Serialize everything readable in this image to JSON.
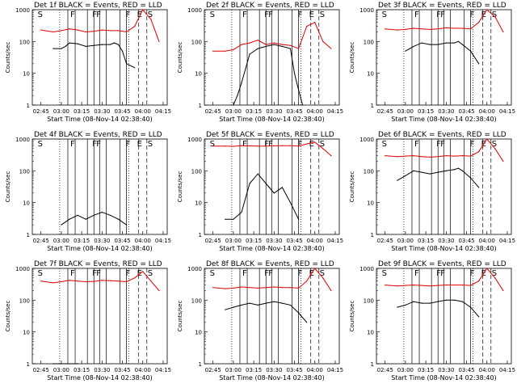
{
  "figure": {
    "xlabel": "Start Time (08-Nov-14 02:38:40)",
    "ylabel": "Counts/sec",
    "x_ticks": [
      "02:45",
      "03:00",
      "03:15",
      "03:30",
      "03:45",
      "04:00",
      "04:15"
    ],
    "y_ticks": [
      "1",
      "10",
      "100",
      "1000"
    ],
    "colors": {
      "events": "#000000",
      "lld": "#e00000"
    }
  },
  "chart_data": [
    {
      "type": "line",
      "title": "Det 1f BLACK = Events, RED = LLD",
      "x_range": [
        "02:38:40",
        "04:18:00"
      ],
      "y_scale": "log",
      "ylim": [
        1,
        1000
      ],
      "series": [
        {
          "name": "Events",
          "values": [
            [
              2.9,
              60
            ],
            [
              3.0,
              60
            ],
            [
              3.05,
              70
            ],
            [
              3.1,
              90
            ],
            [
              3.2,
              85
            ],
            [
              3.3,
              70
            ],
            [
              3.4,
              75
            ],
            [
              3.5,
              80
            ],
            [
              3.6,
              80
            ],
            [
              3.65,
              90
            ],
            [
              3.7,
              80
            ],
            [
              3.75,
              50
            ],
            [
              3.8,
              20
            ],
            [
              3.9,
              15
            ]
          ]
        },
        {
          "name": "LLD",
          "values": [
            [
              2.75,
              230
            ],
            [
              2.9,
              200
            ],
            [
              3.0,
              220
            ],
            [
              3.1,
              250
            ],
            [
              3.2,
              230
            ],
            [
              3.3,
              200
            ],
            [
              3.4,
              210
            ],
            [
              3.5,
              230
            ],
            [
              3.6,
              220
            ],
            [
              3.7,
              220
            ],
            [
              3.8,
              200
            ],
            [
              3.9,
              300
            ],
            [
              4.0,
              1000
            ],
            [
              4.1,
              500
            ],
            [
              4.2,
              100
            ]
          ]
        }
      ],
      "flags": [
        "S",
        "F",
        "F",
        "F",
        "F",
        "E",
        "S"
      ]
    },
    {
      "type": "line",
      "title": "Det 2f BLACK = Events, RED = LLD",
      "x_range": [
        "02:38:40",
        "04:18:00"
      ],
      "y_scale": "log",
      "ylim": [
        1,
        1000
      ],
      "series": [
        {
          "name": "Events",
          "values": [
            [
              3.0,
              1
            ],
            [
              3.05,
              2
            ],
            [
              3.1,
              5
            ],
            [
              3.2,
              40
            ],
            [
              3.3,
              60
            ],
            [
              3.4,
              70
            ],
            [
              3.5,
              80
            ],
            [
              3.6,
              70
            ],
            [
              3.7,
              60
            ],
            [
              3.75,
              10
            ],
            [
              3.8,
              3
            ],
            [
              3.85,
              1
            ]
          ]
        },
        {
          "name": "LLD",
          "values": [
            [
              2.75,
              50
            ],
            [
              2.9,
              50
            ],
            [
              3.0,
              55
            ],
            [
              3.1,
              80
            ],
            [
              3.2,
              90
            ],
            [
              3.3,
              110
            ],
            [
              3.4,
              80
            ],
            [
              3.5,
              90
            ],
            [
              3.6,
              80
            ],
            [
              3.7,
              75
            ],
            [
              3.8,
              60
            ],
            [
              3.9,
              300
            ],
            [
              4.0,
              400
            ],
            [
              4.1,
              100
            ],
            [
              4.2,
              60
            ]
          ]
        }
      ],
      "flags": [
        "S",
        "F",
        "F",
        "F",
        "F",
        "E",
        "S"
      ]
    },
    {
      "type": "line",
      "title": "Det 3f BLACK = Events, RED = LLD",
      "x_range": [
        "02:38:40",
        "04:18:00"
      ],
      "y_scale": "log",
      "ylim": [
        1,
        1000
      ],
      "series": [
        {
          "name": "Events",
          "values": [
            [
              3.0,
              50
            ],
            [
              3.1,
              70
            ],
            [
              3.2,
              90
            ],
            [
              3.3,
              80
            ],
            [
              3.4,
              80
            ],
            [
              3.5,
              90
            ],
            [
              3.6,
              90
            ],
            [
              3.65,
              100
            ],
            [
              3.7,
              80
            ],
            [
              3.8,
              50
            ],
            [
              3.9,
              20
            ]
          ]
        },
        {
          "name": "LLD",
          "values": [
            [
              2.75,
              250
            ],
            [
              2.9,
              230
            ],
            [
              3.0,
              240
            ],
            [
              3.1,
              260
            ],
            [
              3.2,
              250
            ],
            [
              3.3,
              240
            ],
            [
              3.4,
              250
            ],
            [
              3.5,
              270
            ],
            [
              3.6,
              260
            ],
            [
              3.7,
              260
            ],
            [
              3.8,
              250
            ],
            [
              3.9,
              400
            ],
            [
              4.0,
              1000
            ],
            [
              4.1,
              600
            ],
            [
              4.2,
              200
            ]
          ]
        }
      ],
      "flags": [
        "S",
        "F",
        "F",
        "F",
        "F",
        "E",
        "S"
      ]
    },
    {
      "type": "line",
      "title": "Det 4f BLACK = Events, RED = LLD",
      "x_range": [
        "02:38:40",
        "04:18:00"
      ],
      "y_scale": "log",
      "ylim": [
        1,
        1000
      ],
      "series": [
        {
          "name": "Events",
          "values": [
            [
              3.0,
              2
            ],
            [
              3.1,
              3
            ],
            [
              3.2,
              4
            ],
            [
              3.3,
              3
            ],
            [
              3.4,
              4
            ],
            [
              3.5,
              5
            ],
            [
              3.6,
              4
            ],
            [
              3.7,
              3
            ],
            [
              3.8,
              2
            ]
          ]
        }
      ],
      "flags": [
        "S",
        "F",
        "F",
        "F",
        "F",
        "E",
        "S"
      ]
    },
    {
      "type": "line",
      "title": "Det 5f BLACK = Events, RED = LLD",
      "x_range": [
        "02:38:40",
        "04:18:00"
      ],
      "y_scale": "log",
      "ylim": [
        1,
        1000
      ],
      "series": [
        {
          "name": "Events",
          "values": [
            [
              2.9,
              3
            ],
            [
              3.0,
              3
            ],
            [
              3.1,
              5
            ],
            [
              3.2,
              40
            ],
            [
              3.3,
              80
            ],
            [
              3.4,
              40
            ],
            [
              3.5,
              20
            ],
            [
              3.6,
              30
            ],
            [
              3.7,
              10
            ],
            [
              3.8,
              3
            ]
          ]
        },
        {
          "name": "LLD",
          "values": [
            [
              2.75,
              600
            ],
            [
              2.9,
              600
            ],
            [
              3.0,
              590
            ],
            [
              3.1,
              620
            ],
            [
              3.2,
              610
            ],
            [
              3.3,
              600
            ],
            [
              3.4,
              600
            ],
            [
              3.5,
              610
            ],
            [
              3.6,
              620
            ],
            [
              3.7,
              620
            ],
            [
              3.8,
              600
            ],
            [
              3.9,
              700
            ],
            [
              4.0,
              800
            ],
            [
              4.1,
              500
            ],
            [
              4.2,
              300
            ]
          ]
        }
      ],
      "flags": [
        "S",
        "F",
        "F",
        "F",
        "F",
        "E",
        "S"
      ]
    },
    {
      "type": "line",
      "title": "Det 6f BLACK = Events, RED = LLD",
      "x_range": [
        "02:38:40",
        "04:18:00"
      ],
      "y_scale": "log",
      "ylim": [
        1,
        1000
      ],
      "series": [
        {
          "name": "Events",
          "values": [
            [
              2.9,
              50
            ],
            [
              3.0,
              70
            ],
            [
              3.1,
              100
            ],
            [
              3.2,
              90
            ],
            [
              3.3,
              80
            ],
            [
              3.4,
              90
            ],
            [
              3.5,
              100
            ],
            [
              3.6,
              110
            ],
            [
              3.65,
              120
            ],
            [
              3.7,
              100
            ],
            [
              3.8,
              60
            ],
            [
              3.9,
              30
            ]
          ]
        },
        {
          "name": "LLD",
          "values": [
            [
              2.75,
              300
            ],
            [
              2.9,
              280
            ],
            [
              3.0,
              290
            ],
            [
              3.1,
              300
            ],
            [
              3.2,
              280
            ],
            [
              3.3,
              270
            ],
            [
              3.4,
              280
            ],
            [
              3.5,
              300
            ],
            [
              3.6,
              290
            ],
            [
              3.7,
              300
            ],
            [
              3.8,
              290
            ],
            [
              3.9,
              400
            ],
            [
              4.0,
              1000
            ],
            [
              4.1,
              500
            ],
            [
              4.2,
              200
            ]
          ]
        }
      ],
      "flags": [
        "S",
        "F",
        "F",
        "F",
        "F",
        "E",
        "S"
      ]
    },
    {
      "type": "line",
      "title": "Det 7f BLACK = Events, RED = LLD",
      "x_range": [
        "02:38:40",
        "04:18:00"
      ],
      "y_scale": "log",
      "ylim": [
        1,
        1000
      ],
      "series": [
        {
          "name": "Events",
          "values": [
            [
              2.9,
              1
            ],
            [
              3.0,
              1
            ],
            [
              3.1,
              1
            ],
            [
              3.2,
              1
            ]
          ]
        },
        {
          "name": "LLD",
          "values": [
            [
              2.75,
              400
            ],
            [
              2.9,
              350
            ],
            [
              3.0,
              380
            ],
            [
              3.1,
              420
            ],
            [
              3.2,
              400
            ],
            [
              3.3,
              380
            ],
            [
              3.4,
              390
            ],
            [
              3.5,
              420
            ],
            [
              3.6,
              410
            ],
            [
              3.7,
              400
            ],
            [
              3.8,
              380
            ],
            [
              3.9,
              500
            ],
            [
              4.0,
              800
            ],
            [
              4.1,
              400
            ],
            [
              4.2,
              200
            ]
          ]
        }
      ],
      "flags": [
        "S",
        "F",
        "F",
        "F",
        "F",
        "E",
        "S"
      ]
    },
    {
      "type": "line",
      "title": "Det 8f BLACK = Events, RED = LLD",
      "x_range": [
        "02:38:40",
        "04:18:00"
      ],
      "y_scale": "log",
      "ylim": [
        1,
        1000
      ],
      "series": [
        {
          "name": "Events",
          "values": [
            [
              2.9,
              50
            ],
            [
              3.0,
              60
            ],
            [
              3.1,
              70
            ],
            [
              3.2,
              80
            ],
            [
              3.3,
              70
            ],
            [
              3.4,
              80
            ],
            [
              3.5,
              90
            ],
            [
              3.6,
              80
            ],
            [
              3.7,
              70
            ],
            [
              3.8,
              40
            ],
            [
              3.9,
              20
            ]
          ]
        },
        {
          "name": "LLD",
          "values": [
            [
              2.75,
              250
            ],
            [
              2.9,
              230
            ],
            [
              3.0,
              240
            ],
            [
              3.1,
              260
            ],
            [
              3.2,
              250
            ],
            [
              3.3,
              240
            ],
            [
              3.4,
              250
            ],
            [
              3.5,
              260
            ],
            [
              3.6,
              250
            ],
            [
              3.7,
              250
            ],
            [
              3.8,
              240
            ],
            [
              3.9,
              400
            ],
            [
              4.0,
              1000
            ],
            [
              4.1,
              500
            ],
            [
              4.2,
              200
            ]
          ]
        }
      ],
      "flags": [
        "S",
        "F",
        "F",
        "F",
        "F",
        "E",
        "S"
      ]
    },
    {
      "type": "line",
      "title": "Det 9f BLACK = Events, RED = LLD",
      "x_range": [
        "02:38:40",
        "04:18:00"
      ],
      "y_scale": "log",
      "ylim": [
        1,
        1000
      ],
      "series": [
        {
          "name": "Events",
          "values": [
            [
              2.9,
              60
            ],
            [
              3.0,
              70
            ],
            [
              3.1,
              90
            ],
            [
              3.2,
              80
            ],
            [
              3.3,
              80
            ],
            [
              3.4,
              90
            ],
            [
              3.5,
              100
            ],
            [
              3.6,
              100
            ],
            [
              3.7,
              90
            ],
            [
              3.8,
              60
            ],
            [
              3.9,
              30
            ]
          ]
        },
        {
          "name": "LLD",
          "values": [
            [
              2.75,
              300
            ],
            [
              2.9,
              280
            ],
            [
              3.0,
              290
            ],
            [
              3.1,
              300
            ],
            [
              3.2,
              290
            ],
            [
              3.3,
              280
            ],
            [
              3.4,
              290
            ],
            [
              3.5,
              300
            ],
            [
              3.6,
              300
            ],
            [
              3.7,
              300
            ],
            [
              3.8,
              290
            ],
            [
              3.9,
              400
            ],
            [
              4.0,
              1000
            ],
            [
              4.1,
              500
            ],
            [
              4.2,
              200
            ]
          ]
        }
      ],
      "flags": [
        "S",
        "F",
        "F",
        "F",
        "F",
        "E",
        "S"
      ]
    }
  ]
}
